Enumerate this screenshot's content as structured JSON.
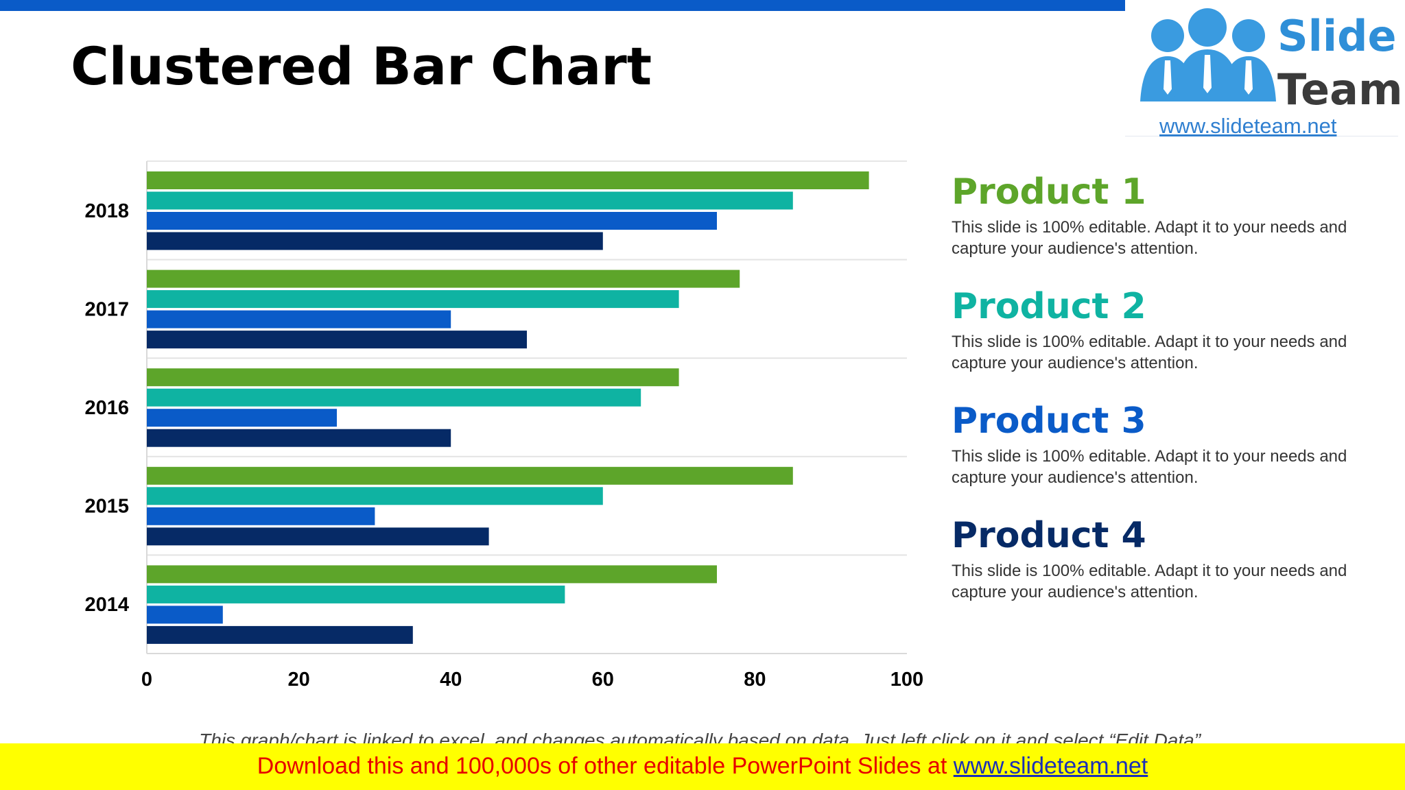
{
  "slide": {
    "title": "Clustered Bar Chart",
    "footnote": "This graph/chart is linked to excel, and changes automatically based on data. Just left click on it and select “Edit Data”.",
    "banner_text": "Download this and 100,000s of other editable PowerPoint Slides at ",
    "banner_link": "www.slideteam.net"
  },
  "logo": {
    "word1": "Slide",
    "word2": "Team",
    "url": "www.slideteam.net"
  },
  "legend": {
    "items": [
      {
        "name": "Product 1",
        "desc": "This slide is 100% editable. Adapt it to your needs and capture your audience's attention."
      },
      {
        "name": "Product 2",
        "desc": "This slide is 100% editable. Adapt it to your needs and capture your audience's attention."
      },
      {
        "name": "Product 3",
        "desc": "This slide is 100% editable. Adapt it to your needs and capture your audience's attention."
      },
      {
        "name": "Product 4",
        "desc": "This slide is 100% editable. Adapt it to your needs and capture your audience's attention."
      }
    ]
  },
  "chart_data": {
    "type": "bar",
    "orientation": "horizontal",
    "title": "Clustered Bar Chart",
    "xlabel": "",
    "ylabel": "",
    "categories": [
      "2018",
      "2017",
      "2016",
      "2015",
      "2014"
    ],
    "xlim": [
      0,
      100
    ],
    "xticks": [
      0,
      20,
      40,
      60,
      80,
      100
    ],
    "grid": true,
    "legend_position": "right",
    "series": [
      {
        "name": "Product 1",
        "color": "#5da52a",
        "values": [
          95,
          78,
          70,
          85,
          75
        ]
      },
      {
        "name": "Product 2",
        "color": "#0fb3a2",
        "values": [
          85,
          70,
          65,
          60,
          55
        ]
      },
      {
        "name": "Product 3",
        "color": "#0a5bc8",
        "values": [
          75,
          40,
          25,
          30,
          10
        ]
      },
      {
        "name": "Product 4",
        "color": "#062a66",
        "values": [
          60,
          50,
          40,
          45,
          35
        ]
      }
    ]
  }
}
